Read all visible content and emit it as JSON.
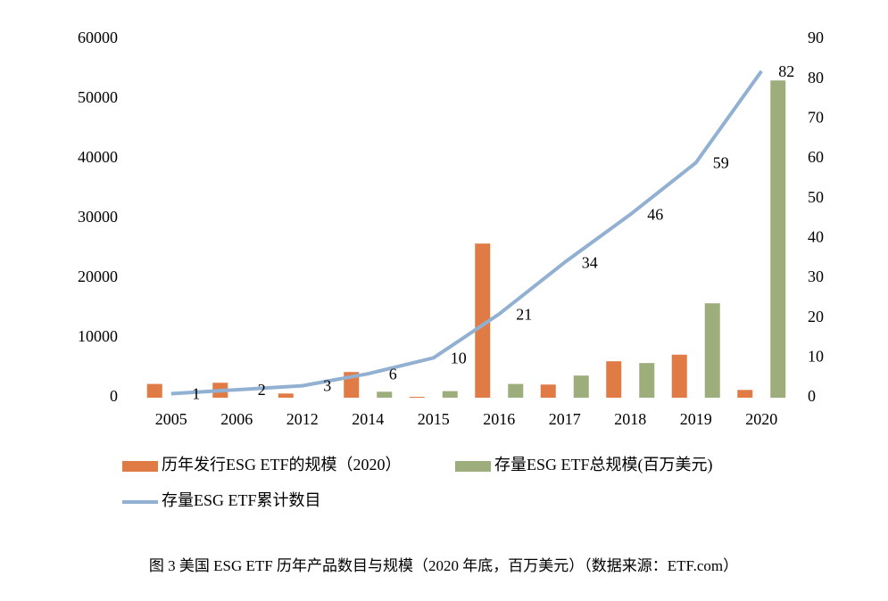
{
  "chart_data": {
    "type": "combo",
    "categories": [
      "2005",
      "2006",
      "2012",
      "2014",
      "2015",
      "2016",
      "2017",
      "2018",
      "2019",
      "2020"
    ],
    "series": [
      {
        "name": "历年发行ESG ETF的规模（2020）",
        "type": "bar",
        "color": "#e07b46",
        "values": [
          2300,
          2500,
          700,
          4300,
          150,
          25800,
          2200,
          6100,
          7200,
          1300
        ]
      },
      {
        "name": "存量ESG ETF总规模(百万美元)",
        "type": "bar",
        "color": "#9ead7c",
        "values": [
          0,
          0,
          0,
          1000,
          1100,
          2300,
          3700,
          5800,
          15800,
          53100
        ]
      },
      {
        "name": "存量ESG ETF累计数目",
        "type": "line",
        "axis": "y2",
        "color": "#92b1d2",
        "values": [
          1,
          2,
          3,
          6,
          10,
          21,
          34,
          46,
          59,
          82
        ]
      }
    ],
    "ylim": [
      0,
      60000
    ],
    "yticks": [
      0,
      10000,
      20000,
      30000,
      40000,
      50000,
      60000
    ],
    "y2lim": [
      0,
      90
    ],
    "y2ticks": [
      0,
      10,
      20,
      30,
      40,
      50,
      60,
      70,
      80,
      90
    ],
    "caption": "图 3 美国  ESG ETF 历年产品数目与规模（2020 年底，百万美元）（数据来源：ETF.com）"
  }
}
